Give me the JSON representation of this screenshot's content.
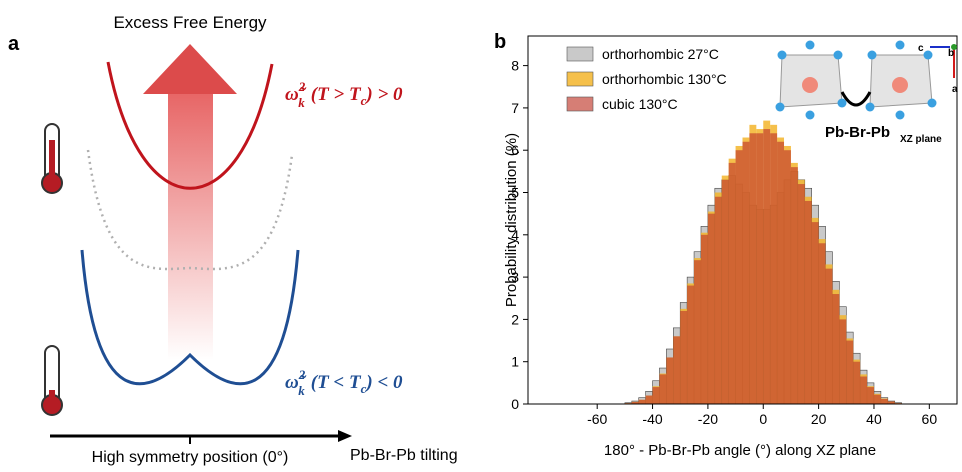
{
  "panel_a": {
    "label": "a",
    "title": "Excess Free Energy",
    "upper_formula": [
      "ω̃",
      "2",
      "k",
      "(T > T",
      "c",
      ") > 0"
    ],
    "lower_formula": [
      "ω̃",
      "2",
      "k",
      "(T < T",
      "c",
      ") < 0"
    ],
    "x_axis_label": "High symmetry position (0°)",
    "x_axis_end_label": "Pb-Br-Pb tilting"
  },
  "chart_data": {
    "type": "histogram",
    "panel_label": "b",
    "xlabel": "180° - Pb-Br-Pb angle (°) along XZ plane",
    "ylabel": "Probability distribution (%)",
    "inset": {
      "title": "Pb-Br-Pb",
      "subscript": "XZ plane",
      "axes": [
        "c",
        "b",
        "a"
      ]
    },
    "xlim": [
      -85,
      70
    ],
    "ylim": [
      0,
      8.7
    ],
    "xticks": [
      -60,
      -40,
      -20,
      0,
      20,
      40,
      60
    ],
    "yticks": [
      0,
      1,
      2,
      3,
      4,
      5,
      6,
      7,
      8
    ],
    "legend": "upper-left",
    "bins": [
      -50,
      -47.5,
      -45,
      -42.5,
      -40,
      -37.5,
      -35,
      -32.5,
      -30,
      -27.5,
      -25,
      -22.5,
      -20,
      -17.5,
      -15,
      -12.5,
      -10,
      -7.5,
      -5,
      -2.5,
      0,
      2.5,
      5,
      7.5,
      10,
      12.5,
      15,
      17.5,
      20,
      22.5,
      25,
      27.5,
      30,
      32.5,
      35,
      37.5,
      40,
      42.5,
      45,
      47.5,
      50
    ],
    "series": [
      {
        "name": "orthorhombic 27°C",
        "color": "#c9c9c9",
        "values": [
          0.03,
          0.07,
          0.15,
          0.3,
          0.55,
          0.85,
          1.3,
          1.8,
          2.4,
          3.0,
          3.6,
          4.2,
          4.7,
          5.1,
          5.3,
          5.4,
          5.2,
          5.0,
          4.7,
          4.6,
          4.6,
          4.7,
          5.0,
          5.3,
          5.5,
          5.3,
          5.1,
          4.7,
          4.2,
          3.6,
          2.9,
          2.3,
          1.7,
          1.2,
          0.8,
          0.5,
          0.3,
          0.15,
          0.07,
          0.03
        ]
      },
      {
        "name": "orthorhombic 130°C",
        "color": "#f3b52c",
        "values": [
          0.02,
          0.05,
          0.1,
          0.2,
          0.42,
          0.72,
          1.1,
          1.6,
          2.25,
          2.85,
          3.45,
          4.05,
          4.55,
          5.0,
          5.4,
          5.8,
          6.1,
          6.3,
          6.6,
          6.5,
          6.7,
          6.6,
          6.3,
          6.1,
          5.7,
          5.3,
          4.9,
          4.4,
          3.9,
          3.3,
          2.7,
          2.1,
          1.55,
          1.05,
          0.7,
          0.42,
          0.24,
          0.13,
          0.06,
          0.02
        ]
      },
      {
        "name": "cubic 130°C",
        "color": "#c0392b",
        "values": [
          0.02,
          0.05,
          0.1,
          0.2,
          0.4,
          0.7,
          1.1,
          1.6,
          2.2,
          2.8,
          3.4,
          4.0,
          4.5,
          4.9,
          5.3,
          5.7,
          6.0,
          6.2,
          6.4,
          6.4,
          6.5,
          6.4,
          6.2,
          6.0,
          5.6,
          5.2,
          4.8,
          4.3,
          3.8,
          3.2,
          2.6,
          2.0,
          1.5,
          1.0,
          0.65,
          0.4,
          0.22,
          0.12,
          0.06,
          0.02
        ]
      }
    ]
  }
}
